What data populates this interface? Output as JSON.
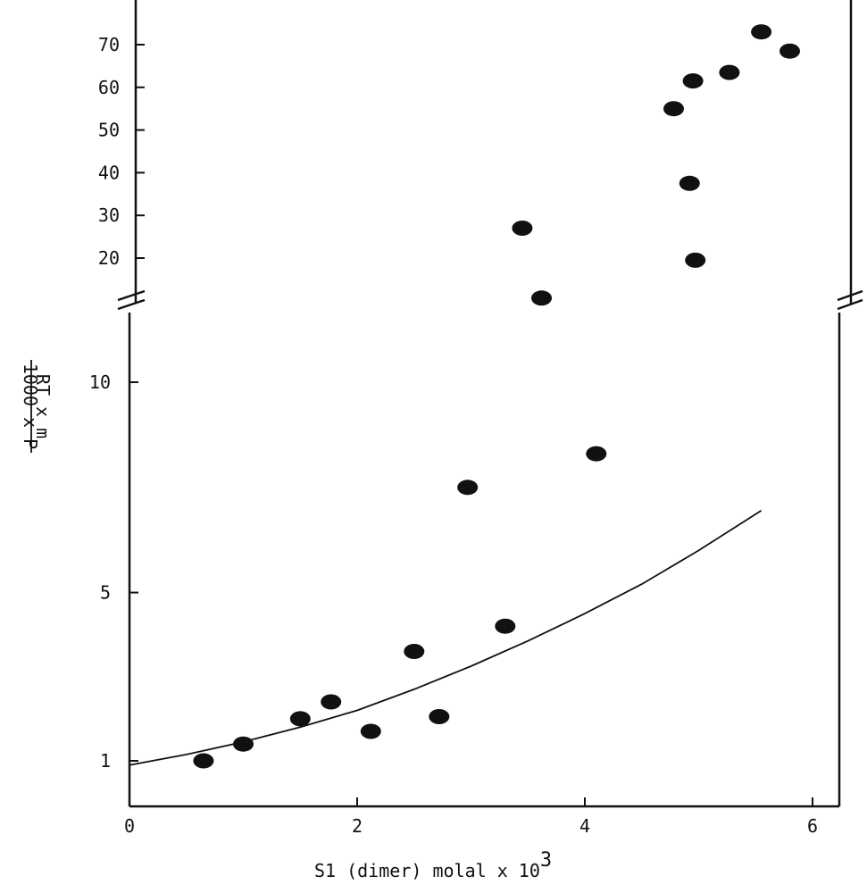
{
  "chart_data": {
    "type": "scatter",
    "xlabel_main": "S1 (dimer) molal x 10",
    "xlabel_exp": "3",
    "ylabel_numerator": "1000 x P",
    "ylabel_denominator": "RT x m",
    "xlim": [
      0,
      6.2
    ],
    "x_ticks": [
      0,
      2,
      4,
      6
    ],
    "y_ticks_lower": [
      1,
      5,
      10
    ],
    "y_ticks_upper": [
      20,
      30,
      40,
      50,
      60,
      70
    ],
    "ylim_lower": [
      0,
      13
    ],
    "ylim_upper": [
      15,
      73
    ],
    "axis_break": true,
    "points": [
      {
        "x": 0.65,
        "y": 1.0
      },
      {
        "x": 1.0,
        "y": 1.4
      },
      {
        "x": 1.5,
        "y": 2.0
      },
      {
        "x": 1.77,
        "y": 2.4
      },
      {
        "x": 2.12,
        "y": 1.7
      },
      {
        "x": 2.5,
        "y": 3.6
      },
      {
        "x": 2.72,
        "y": 2.05
      },
      {
        "x": 2.97,
        "y": 7.5
      },
      {
        "x": 3.3,
        "y": 4.2
      },
      {
        "x": 3.62,
        "y": 12.0
      },
      {
        "x": 4.1,
        "y": 8.3
      },
      {
        "x": 3.45,
        "y": 27.0
      },
      {
        "x": 4.78,
        "y": 55.0
      },
      {
        "x": 4.92,
        "y": 37.5
      },
      {
        "x": 4.95,
        "y": 61.5
      },
      {
        "x": 4.97,
        "y": 19.5
      },
      {
        "x": 5.27,
        "y": 63.5
      },
      {
        "x": 5.55,
        "y": 73.0
      },
      {
        "x": 5.8,
        "y": 68.5
      }
    ],
    "fit_curve": [
      {
        "x": 0,
        "y": 0.9
      },
      {
        "x": 0.5,
        "y": 1.15
      },
      {
        "x": 1.0,
        "y": 1.45
      },
      {
        "x": 1.5,
        "y": 1.8
      },
      {
        "x": 2.0,
        "y": 2.2
      },
      {
        "x": 2.5,
        "y": 2.7
      },
      {
        "x": 3.0,
        "y": 3.25
      },
      {
        "x": 3.5,
        "y": 3.85
      },
      {
        "x": 4.0,
        "y": 4.5
      },
      {
        "x": 4.5,
        "y": 5.2
      },
      {
        "x": 5.0,
        "y": 6.0
      },
      {
        "x": 5.55,
        "y": 6.95
      }
    ]
  }
}
